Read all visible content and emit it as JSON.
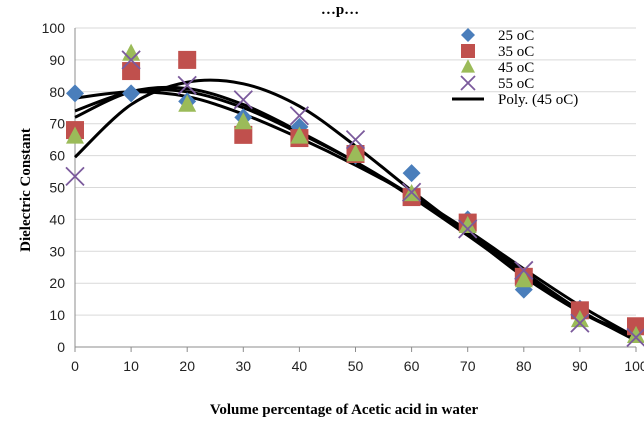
{
  "chart_data": {
    "type": "scatter",
    "title": "…p…",
    "xlabel": "Volume percentage of Acetic acid in water",
    "ylabel": "Dielectric Constant",
    "xlim": [
      0,
      100
    ],
    "ylim": [
      0,
      100
    ],
    "x_ticks": [
      0,
      10,
      20,
      30,
      40,
      50,
      60,
      70,
      80,
      90,
      100
    ],
    "y_ticks": [
      0,
      10,
      20,
      30,
      40,
      50,
      60,
      70,
      80,
      90,
      100
    ],
    "grid": true,
    "legend_position": "top-right",
    "x": [
      0,
      10,
      20,
      30,
      40,
      50,
      60,
      70,
      80,
      90,
      100
    ],
    "series": [
      {
        "name": "25 oC",
        "marker": "diamond",
        "color": "#4a7ebb",
        "values": [
          79.5,
          79.5,
          77,
          72,
          69,
          60,
          54.5,
          40,
          18,
          12,
          5
        ]
      },
      {
        "name": "35 oC",
        "marker": "square",
        "color": "#c0504d",
        "values": [
          68,
          86.5,
          90,
          66.5,
          65.5,
          60.5,
          47,
          39,
          22,
          11.5,
          6.5
        ]
      },
      {
        "name": "45 oC",
        "marker": "triangle",
        "color": "#9bbb59",
        "values": [
          66,
          92,
          76,
          70.5,
          66,
          60.5,
          48,
          38,
          21,
          8.5,
          3.5
        ]
      },
      {
        "name": "55 oC",
        "marker": "x",
        "color": "#7b5a9c",
        "values": [
          53.5,
          90,
          82,
          77.5,
          72.5,
          65,
          48.5,
          37,
          24,
          7.5,
          3
        ]
      }
    ],
    "trendline_legend": "Poly. (45 oC)",
    "trendlines": [
      {
        "color": "#000000",
        "x": [
          0,
          10,
          20,
          30,
          40,
          50,
          60,
          70,
          80,
          90,
          100
        ],
        "values": [
          78,
          80,
          78.5,
          73,
          65.5,
          57,
          47.5,
          36.5,
          24.5,
          13,
          3
        ]
      },
      {
        "color": "#000000",
        "x": [
          0,
          10,
          20,
          30,
          40,
          50,
          60,
          70,
          80,
          90,
          100
        ],
        "values": [
          74,
          80,
          80,
          75,
          67,
          58,
          47.5,
          36,
          23.5,
          11.5,
          2
        ]
      },
      {
        "color": "#000000",
        "x": [
          0,
          10,
          20,
          30,
          40,
          50,
          60,
          70,
          80,
          90,
          100
        ],
        "values": [
          72,
          80,
          81,
          76,
          67.5,
          58,
          47,
          35,
          22.5,
          11,
          3.5
        ]
      },
      {
        "color": "#000000",
        "x": [
          0,
          10,
          20,
          30,
          40,
          50,
          60,
          70,
          80,
          90,
          100
        ],
        "values": [
          59.5,
          76,
          83,
          82.5,
          75.5,
          63,
          49,
          35.5,
          22,
          11,
          2.5
        ]
      }
    ]
  }
}
